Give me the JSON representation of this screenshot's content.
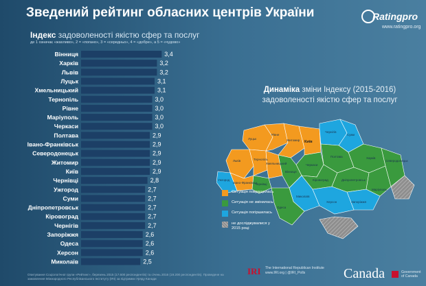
{
  "header": {
    "title": "Зведений рейтинг обласних центрів України"
  },
  "logo": {
    "name": "Ratingpro",
    "url": "www.ratingpro.org"
  },
  "bar_section": {
    "title_highlight": "Індекс",
    "title_rest": "задоволеності якістю сфер та послуг",
    "note": "де 1 означає «жахливо», 2 = «погано», 3 = «середньо», 4 = «добре», а 5 = «чудово»"
  },
  "chart_data": {
    "type": "bar",
    "orientation": "horizontal",
    "title": "Індекс задоволеності якістю сфер та послуг",
    "categories": [
      "Вінниця",
      "Харків",
      "Львів",
      "Луцьк",
      "Хмельницький",
      "Тернопіль",
      "Рівне",
      "Маріуполь",
      "Черкаси",
      "Полтава",
      "Івано-Франківськ",
      "Северодонецьк",
      "Житомир",
      "Київ",
      "Чернівці",
      "Ужгород",
      "Суми",
      "Дніпропетровськ",
      "Кіровоград",
      "Чернігів",
      "Запоріжжя",
      "Одеса",
      "Херсон",
      "Миколаїв"
    ],
    "values": [
      3.4,
      3.2,
      3.2,
      3.1,
      3.1,
      3.0,
      3.0,
      3.0,
      3.0,
      2.9,
      2.9,
      2.9,
      2.9,
      2.9,
      2.8,
      2.7,
      2.7,
      2.7,
      2.7,
      2.7,
      2.6,
      2.6,
      2.6,
      2.5
    ],
    "value_labels": [
      "3,4",
      "3,2",
      "3,2",
      "3,1",
      "3,1",
      "3,0",
      "3,0",
      "3,0",
      "3,0",
      "2,9",
      "2,9",
      "2,9",
      "2,9",
      "2,9",
      "2,8",
      "2,7",
      "2,7",
      "2,7",
      "2,7",
      "2,7",
      "2,6",
      "2,6",
      "2,6",
      "2,5"
    ],
    "bar_color": "#1c3f66",
    "grid": false
  },
  "map_section": {
    "title_highlight": "Динаміка",
    "title_rest1": "зміни Індексу (2015-2016)",
    "title_rest2": "задоволеності якістю сфер та послуг",
    "map_labels": {
      "kyiv": "Київ",
      "zhytomyr": "Житомир",
      "rivne": "Рівне",
      "lutsk": "Луцьк",
      "lviv": "Львів",
      "ternopil": "Тернопіль",
      "khmelnytskyi": "Хмельницький",
      "ivano": "Івано-Франківськ",
      "uzhhorod": "Ужгород",
      "chernivtsi": "Чернівці",
      "vinnytsia": "Вінниця",
      "chernihiv": "Чернігів",
      "sumy": "Суми",
      "kharkiv": "Харків",
      "poltava": "Полтава",
      "cherkasy": "Черкаси",
      "kirovohrad": "Кіровоград",
      "dnipro": "Дніпропетровськ",
      "zaporizhzhia": "Запоріжжя",
      "mykolaiv": "Миколаїв",
      "kherson": "Херсон",
      "odesa": "Одеса",
      "severodonetsk": "Северодонецьк",
      "mariupol": "Маріуполь"
    }
  },
  "legend": [
    {
      "label": "Ситуація покращилась",
      "color": "#f39a1f"
    },
    {
      "label": "Ситуація не змінилась",
      "color": "#3a9a3e"
    },
    {
      "label": "Ситуація погіршилась",
      "color": "#1ea6df"
    },
    {
      "label": "не досліджувалися у 2015 році",
      "color": "#9a9a9a"
    }
  ],
  "colors": {
    "improved": "#f39a1f",
    "unchanged": "#3a9a3e",
    "worsened": "#1ea6df",
    "not_studied": "#9a9a9a"
  },
  "footer": {
    "note": "Опитування Соціологічної групи «Рейтинг», березень 2015 (17.600 респондентів) та січень 2016 (19.200 респондентів). Проведене на замовлення Міжнародного Республіканського Інституту (IRI) за підтримки Уряду Канади",
    "iri_mark": "IRI",
    "iri_name": "The International Republican Institute",
    "iri_url": "www.IRI.org | @IRI_Polls",
    "canada_word": "Canada",
    "canada_gov1": "Government",
    "canada_gov2": "of Canada"
  }
}
